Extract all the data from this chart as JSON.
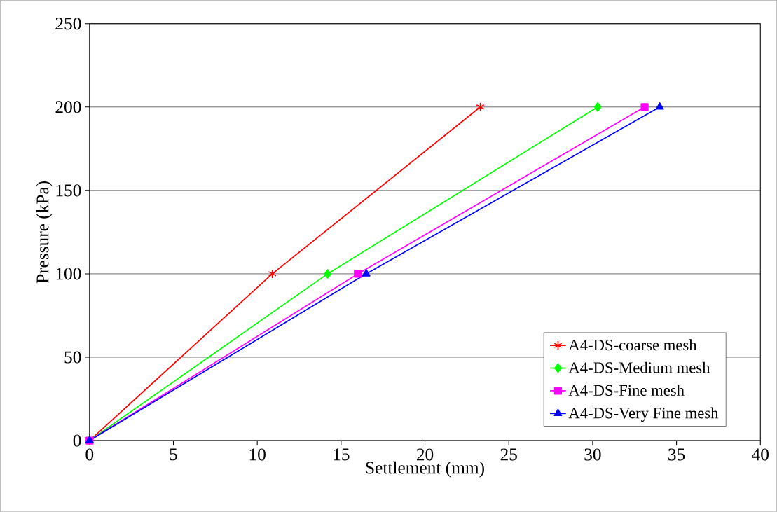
{
  "chart_data": {
    "type": "line",
    "xlabel": "Settlement (mm)",
    "ylabel": "Pressure (kPa)",
    "xlim": [
      0,
      40
    ],
    "xticks": [
      0,
      5,
      10,
      15,
      20,
      25,
      30,
      35,
      40
    ],
    "ylim": [
      0,
      250
    ],
    "yticks": [
      0,
      50,
      100,
      150,
      200,
      250
    ],
    "grid": "y",
    "legend": "bottom right",
    "line_style": "solid",
    "series": [
      {
        "name": "A4-DS-coarse mesh",
        "color": "#ff0000",
        "marker": "cross",
        "x": [
          0,
          10.9,
          23.3
        ],
        "values": [
          0,
          100,
          200
        ]
      },
      {
        "name": "A4-DS-Medium mesh",
        "color": "#00ff00",
        "marker": "diamond",
        "x": [
          0,
          14.2,
          30.3
        ],
        "values": [
          0,
          100,
          200
        ]
      },
      {
        "name": "A4-DS-Fine mesh",
        "color": "#ff00ff",
        "marker": "square",
        "x": [
          0,
          16.0,
          33.1
        ],
        "values": [
          0,
          100,
          200
        ]
      },
      {
        "name": "A4-DS-Very Fine mesh",
        "color": "#0000ff",
        "marker": "triangle",
        "x": [
          0,
          16.5,
          34.0
        ],
        "values": [
          0,
          100,
          200
        ]
      }
    ]
  }
}
